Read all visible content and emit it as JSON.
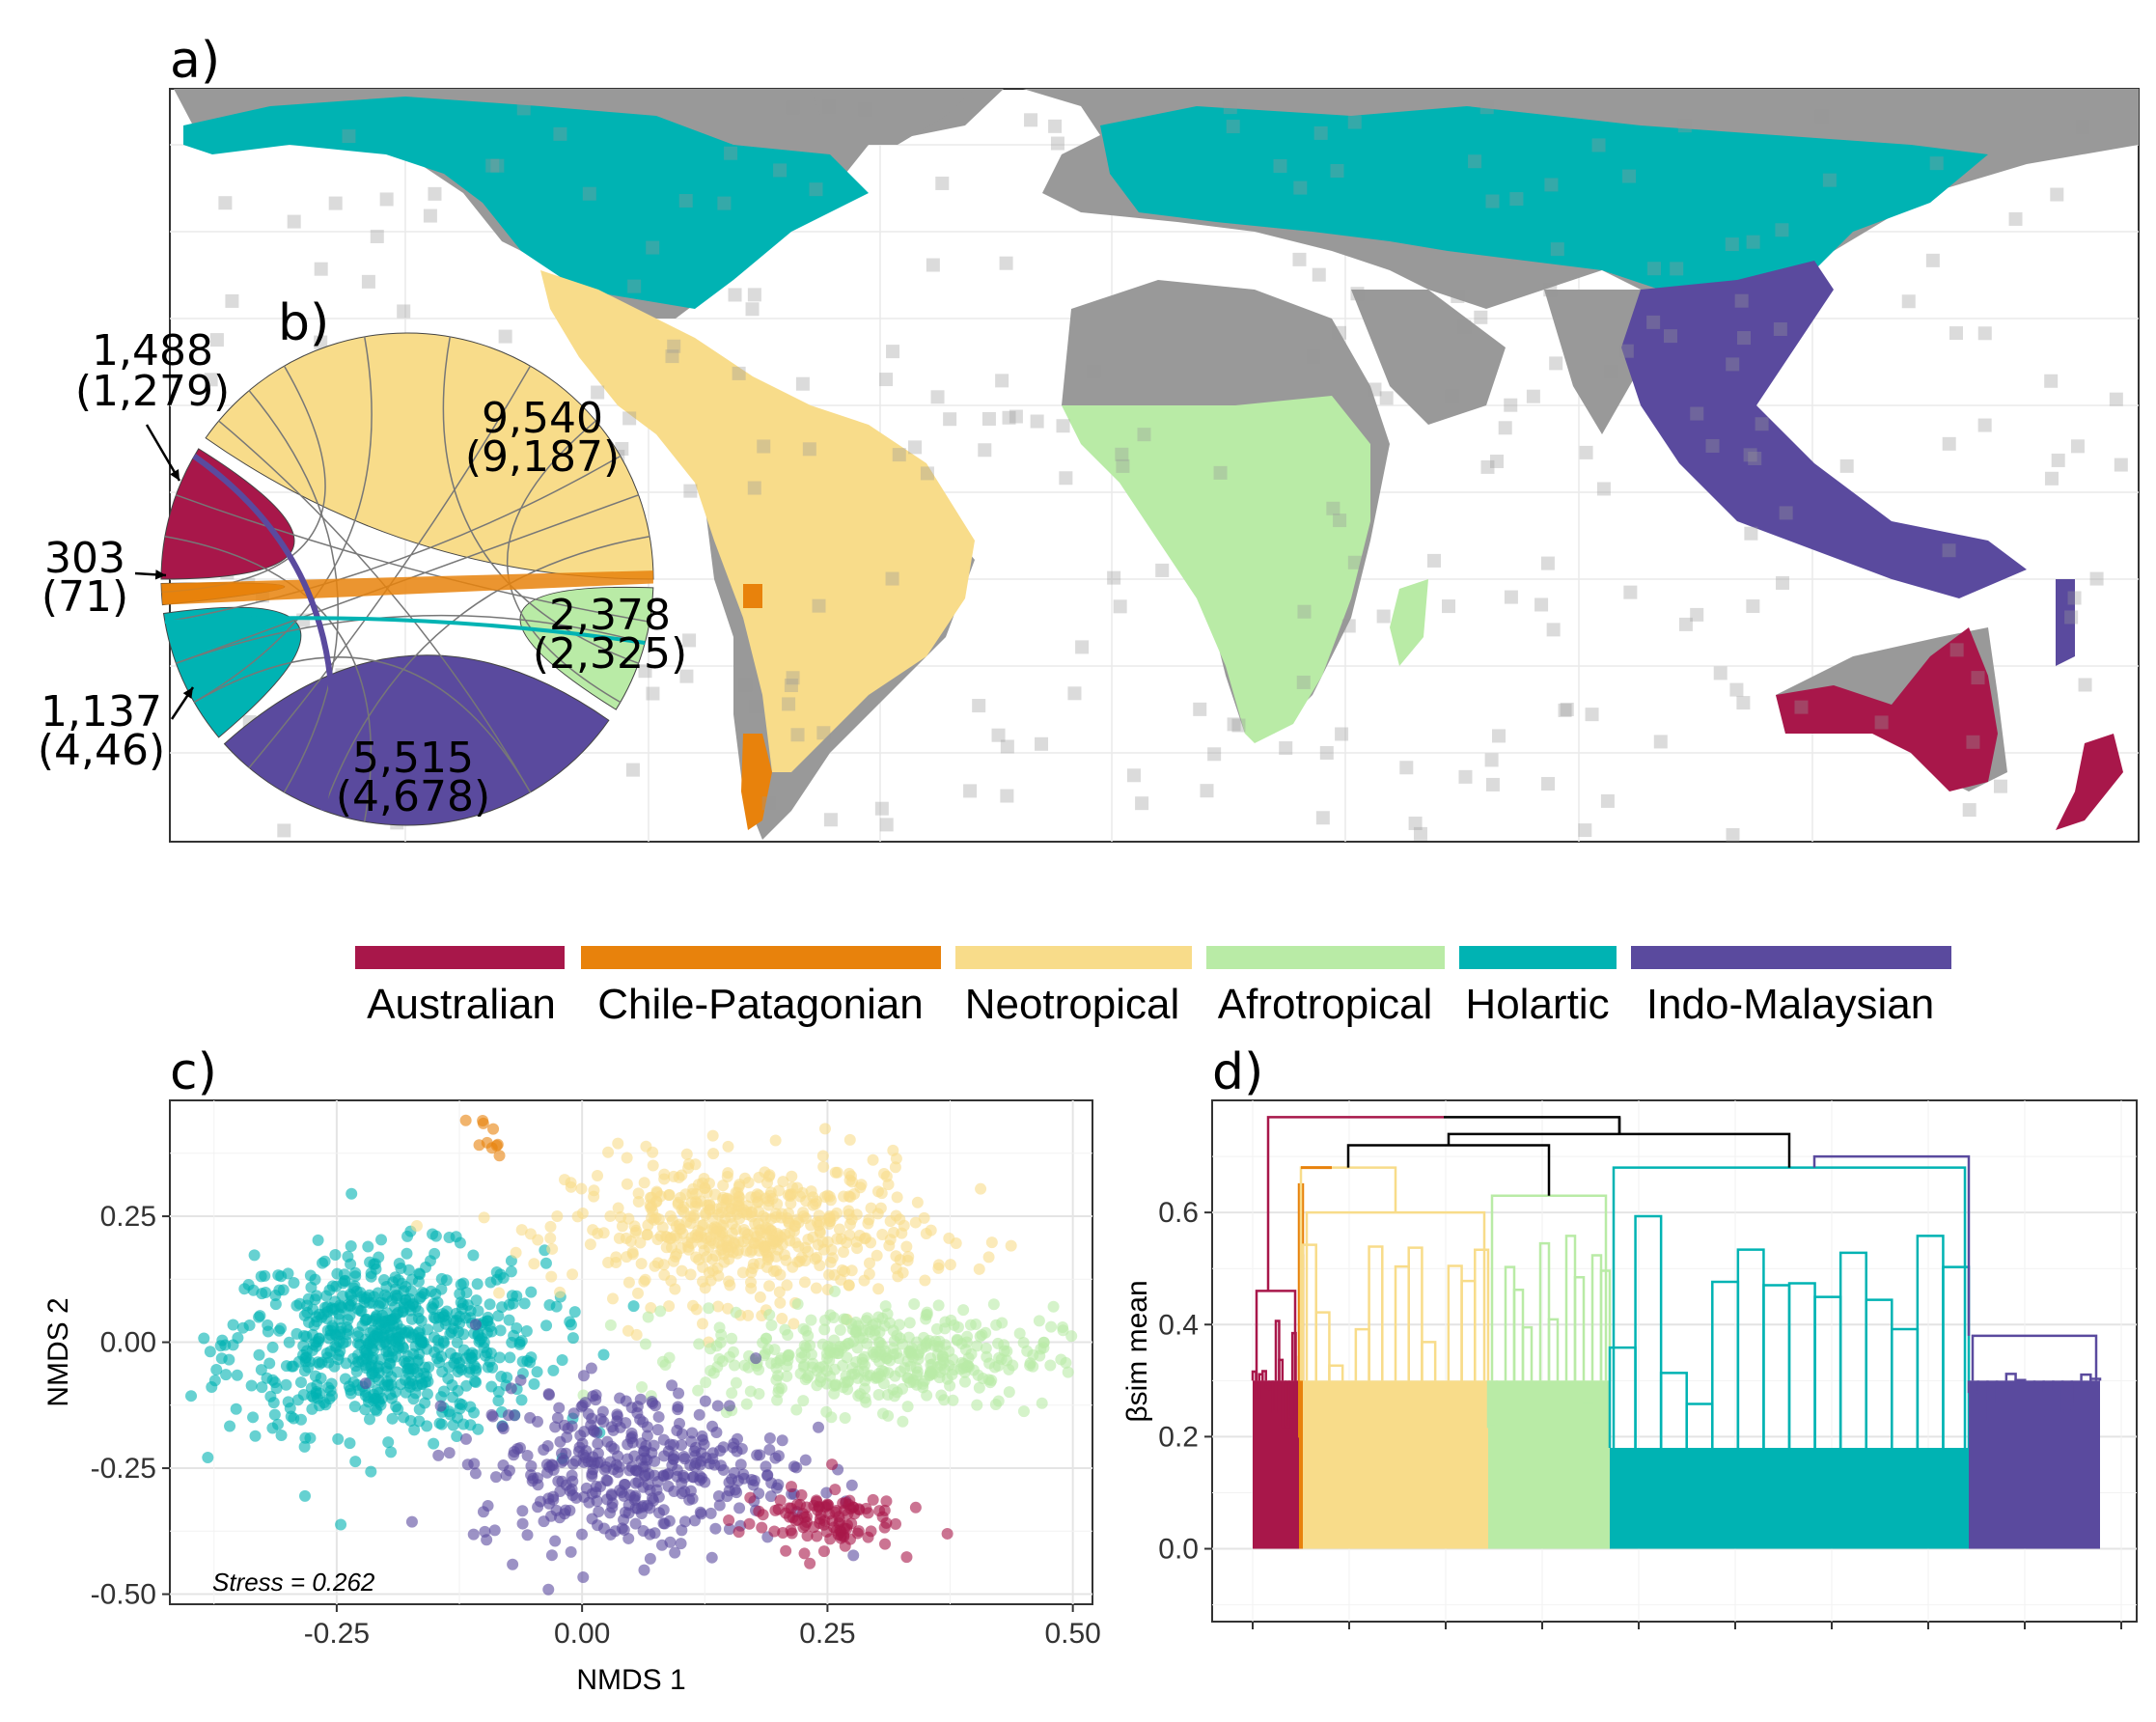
{
  "panels": {
    "a": "a)",
    "b": "b)",
    "c": "c)",
    "d": "d)"
  },
  "colors": {
    "Australian": "#A8174A",
    "Chile-Patagonian": "#E8820C",
    "Neotropical": "#F8DC8A",
    "Afrotropical": "#B9EBA6",
    "Holartic": "#00B3B3",
    "Indo-Malaysian": "#5A4A9E",
    "land": "#999999"
  },
  "legend": {
    "items": [
      "Australian",
      "Chile-Patagonian",
      "Neotropical",
      "Afrotropical",
      "Holartic",
      "Indo-Malaysian"
    ]
  },
  "chord": {
    "labels": [
      {
        "region": "Australian",
        "total": "1,488",
        "endemic": "(1,279)"
      },
      {
        "region": "Chile-Patagonian",
        "total": "303",
        "endemic": "(71)"
      },
      {
        "region": "Holartic",
        "total": "1,137",
        "endemic": "(4,46)"
      },
      {
        "region": "Indo-Malaysian",
        "total": "5,515",
        "endemic": "(4,678)"
      },
      {
        "region": "Afrotropical",
        "total": "2,378",
        "endemic": "(2,325)"
      },
      {
        "region": "Neotropical",
        "total": "9,540",
        "endemic": "(9,187)"
      }
    ]
  },
  "chart_data": [
    {
      "panel": "a",
      "type": "map",
      "regions": [
        "Holartic",
        "Neotropical",
        "Chile-Patagonian",
        "Afrotropical",
        "Indo-Malaysian",
        "Australian"
      ]
    },
    {
      "panel": "b",
      "type": "chord",
      "sectors": [
        {
          "region": "Neotropical",
          "value": 9540,
          "endemic": 9187
        },
        {
          "region": "Afrotropical",
          "value": 2378,
          "endemic": 2325
        },
        {
          "region": "Indo-Malaysian",
          "value": 5515,
          "endemic": 4678
        },
        {
          "region": "Holartic",
          "value": 1137,
          "endemic": 446
        },
        {
          "region": "Chile-Patagonian",
          "value": 303,
          "endemic": 71
        },
        {
          "region": "Australian",
          "value": 1488,
          "endemic": 1279
        }
      ]
    },
    {
      "panel": "c",
      "type": "scatter",
      "xlabel": "NMDS 1",
      "ylabel": "NMDS 2",
      "xticks": [
        "-0.25",
        "0.00",
        "0.25",
        "0.50"
      ],
      "xtick_values": [
        -0.25,
        0,
        0.25,
        0.5
      ],
      "yticks": [
        "0.25",
        "0.00",
        "-0.25",
        "-0.50"
      ],
      "ytick_values": [
        0.25,
        0,
        -0.25,
        -0.5
      ],
      "xlim": [
        -0.42,
        0.52
      ],
      "ylim": [
        -0.52,
        0.48
      ],
      "annotation": "Stress = 0.262",
      "series": [
        {
          "name": "Holartic",
          "center": [
            -0.2,
            0.0
          ],
          "spread": [
            0.08,
            0.09
          ],
          "n": 700
        },
        {
          "name": "Neotropical",
          "center": [
            0.17,
            0.22
          ],
          "spread": [
            0.09,
            0.07
          ],
          "n": 550
        },
        {
          "name": "Afrotropical",
          "center": [
            0.3,
            -0.03
          ],
          "spread": [
            0.09,
            0.05
          ],
          "n": 400
        },
        {
          "name": "Indo-Malaysian",
          "center": [
            0.05,
            -0.25
          ],
          "spread": [
            0.08,
            0.08
          ],
          "n": 400
        },
        {
          "name": "Australian",
          "center": [
            0.24,
            -0.35
          ],
          "spread": [
            0.04,
            0.03
          ],
          "n": 110
        },
        {
          "name": "Chile-Patagonian",
          "center": [
            -0.1,
            0.42
          ],
          "spread": [
            0.01,
            0.03
          ],
          "n": 10
        }
      ]
    },
    {
      "panel": "d",
      "type": "dendrogram",
      "ylabel": "βsim mean",
      "yticks": [
        "0.6",
        "0.4",
        "0.2",
        "0.0"
      ],
      "ytick_values": [
        0.6,
        0.4,
        0.2,
        0.0
      ],
      "ylim": [
        -0.13,
        0.8
      ],
      "root_height": 0.75,
      "clusters": [
        {
          "name": "Australian",
          "merge_height": 0.46
        },
        {
          "name": "Chile-Patagonian",
          "merge_height": 0.65
        },
        {
          "name": "Neotropical",
          "merge_height": 0.6
        },
        {
          "name": "Afrotropical",
          "merge_height": 0.63
        },
        {
          "name": "Holartic",
          "merge_height": 0.68
        },
        {
          "name": "Indo-Malaysian",
          "merge_height": 0.38
        }
      ]
    }
  ]
}
